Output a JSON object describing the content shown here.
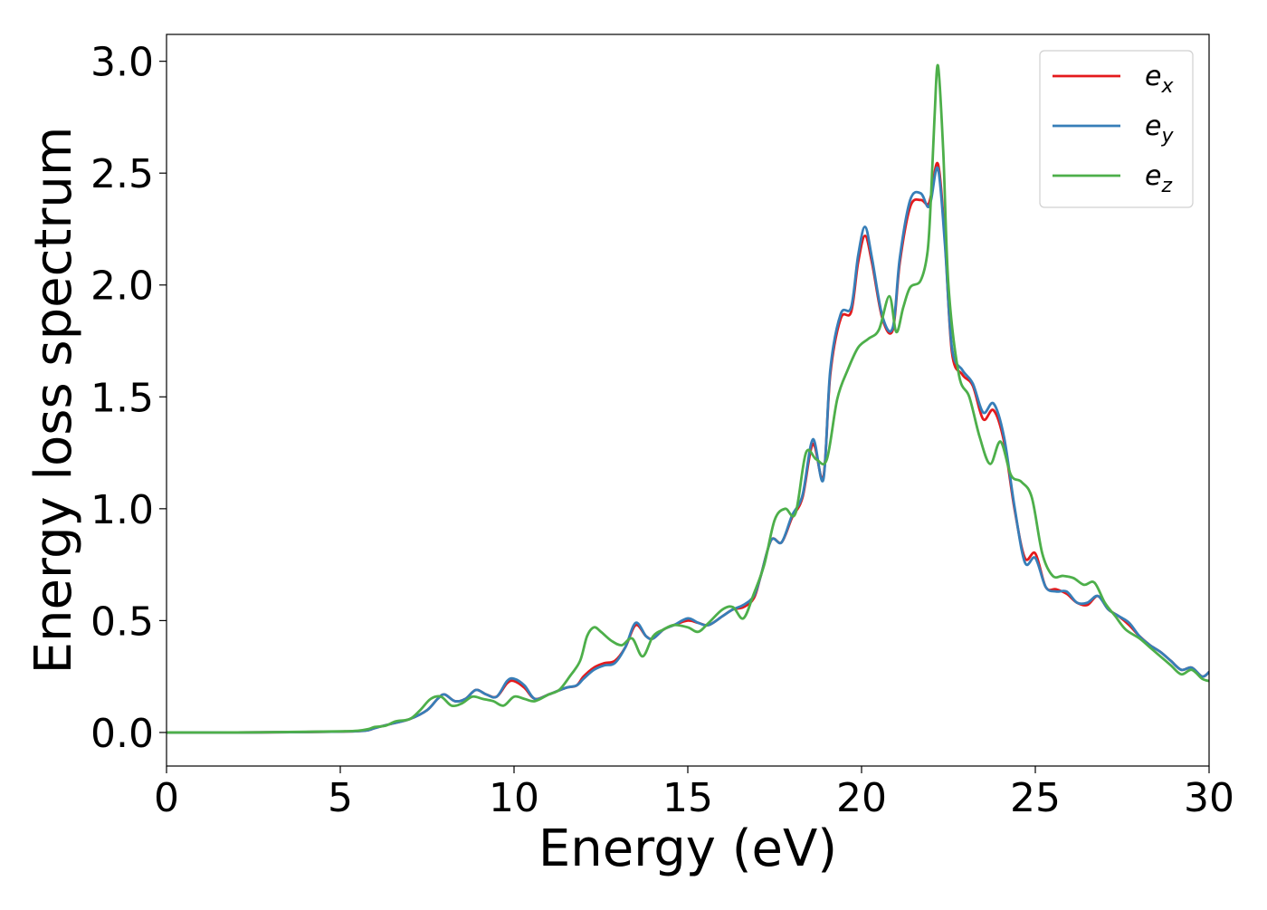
{
  "chart_data": {
    "type": "line",
    "title": "",
    "xlabel": "Energy (eV)",
    "ylabel": "Energy loss spectrum",
    "xlim": [
      0,
      30
    ],
    "ylim": [
      -0.15,
      3.12
    ],
    "xticks": [
      0,
      5,
      10,
      15,
      20,
      25,
      30
    ],
    "xtick_labels": [
      "0",
      "5",
      "10",
      "15",
      "20",
      "25",
      "30"
    ],
    "yticks": [
      0.0,
      0.5,
      1.0,
      1.5,
      2.0,
      2.5,
      3.0
    ],
    "ytick_labels": [
      "0.0",
      "0.5",
      "1.0",
      "1.5",
      "2.0",
      "2.5",
      "3.0"
    ],
    "grid": false,
    "legend_position": "top-right",
    "series": [
      {
        "name": "e_x",
        "legend_base": "e",
        "legend_sub": "x",
        "color": "#e41a1c",
        "x": [
          0,
          2,
          4,
          5,
          5.5,
          5.8,
          6.0,
          6.5,
          7.0,
          7.5,
          7.8,
          8.0,
          8.3,
          8.6,
          8.9,
          9.2,
          9.5,
          9.8,
          10.0,
          10.3,
          10.6,
          11.0,
          11.5,
          11.8,
          12.0,
          12.3,
          12.6,
          12.9,
          13.2,
          13.5,
          13.8,
          14.0,
          14.3,
          14.6,
          15.0,
          15.3,
          15.6,
          16.0,
          16.3,
          16.6,
          16.9,
          17.1,
          17.4,
          17.7,
          18.0,
          18.3,
          18.6,
          18.9,
          19.1,
          19.4,
          19.7,
          19.9,
          20.1,
          20.3,
          20.6,
          20.9,
          21.1,
          21.4,
          21.7,
          21.9,
          22.0,
          22.2,
          22.4,
          22.6,
          22.9,
          23.2,
          23.5,
          23.8,
          24.1,
          24.4,
          24.7,
          25.0,
          25.3,
          25.6,
          25.9,
          26.2,
          26.5,
          26.8,
          27.1,
          27.4,
          27.7,
          28.0,
          28.3,
          28.6,
          28.9,
          29.2,
          29.5,
          29.8,
          30.0
        ],
        "y": [
          0,
          0,
          0.002,
          0.004,
          0.006,
          0.01,
          0.02,
          0.04,
          0.06,
          0.1,
          0.15,
          0.17,
          0.14,
          0.15,
          0.19,
          0.17,
          0.16,
          0.22,
          0.23,
          0.2,
          0.15,
          0.17,
          0.2,
          0.21,
          0.25,
          0.29,
          0.31,
          0.32,
          0.38,
          0.48,
          0.43,
          0.42,
          0.46,
          0.48,
          0.5,
          0.49,
          0.48,
          0.52,
          0.55,
          0.56,
          0.6,
          0.7,
          0.86,
          0.85,
          0.96,
          1.05,
          1.29,
          1.14,
          1.6,
          1.85,
          1.88,
          2.1,
          2.22,
          2.1,
          1.85,
          1.8,
          2.1,
          2.35,
          2.38,
          2.36,
          2.4,
          2.54,
          2.2,
          1.7,
          1.6,
          1.55,
          1.4,
          1.44,
          1.3,
          1.0,
          0.78,
          0.8,
          0.65,
          0.64,
          0.62,
          0.58,
          0.57,
          0.61,
          0.55,
          0.52,
          0.48,
          0.43,
          0.39,
          0.36,
          0.32,
          0.28,
          0.29,
          0.25,
          0.27
        ]
      },
      {
        "name": "e_y",
        "legend_base": "e",
        "legend_sub": "y",
        "color": "#377eb8",
        "x": [
          0,
          2,
          4,
          5,
          5.5,
          5.8,
          6.0,
          6.5,
          7.0,
          7.5,
          7.8,
          8.0,
          8.3,
          8.6,
          8.9,
          9.2,
          9.5,
          9.8,
          10.0,
          10.3,
          10.6,
          11.0,
          11.5,
          11.8,
          12.0,
          12.3,
          12.6,
          12.9,
          13.2,
          13.5,
          13.8,
          14.0,
          14.3,
          14.6,
          15.0,
          15.3,
          15.6,
          16.0,
          16.3,
          16.6,
          16.9,
          17.1,
          17.4,
          17.7,
          18.0,
          18.3,
          18.6,
          18.9,
          19.1,
          19.4,
          19.7,
          19.9,
          20.1,
          20.3,
          20.6,
          20.9,
          21.1,
          21.4,
          21.7,
          21.9,
          22.0,
          22.2,
          22.4,
          22.6,
          22.9,
          23.2,
          23.5,
          23.8,
          24.1,
          24.4,
          24.7,
          25.0,
          25.3,
          25.6,
          25.9,
          26.2,
          26.5,
          26.8,
          27.1,
          27.4,
          27.7,
          28.0,
          28.3,
          28.6,
          28.9,
          29.2,
          29.5,
          29.8,
          30.0
        ],
        "y": [
          0,
          0,
          0.002,
          0.004,
          0.006,
          0.01,
          0.02,
          0.04,
          0.06,
          0.1,
          0.15,
          0.17,
          0.14,
          0.15,
          0.19,
          0.17,
          0.16,
          0.23,
          0.24,
          0.21,
          0.15,
          0.17,
          0.2,
          0.21,
          0.24,
          0.28,
          0.3,
          0.31,
          0.38,
          0.49,
          0.43,
          0.42,
          0.46,
          0.48,
          0.51,
          0.49,
          0.48,
          0.52,
          0.55,
          0.57,
          0.61,
          0.7,
          0.86,
          0.85,
          0.97,
          1.06,
          1.31,
          1.13,
          1.62,
          1.87,
          1.9,
          2.13,
          2.26,
          2.12,
          1.86,
          1.81,
          2.12,
          2.38,
          2.41,
          2.35,
          2.38,
          2.52,
          2.18,
          1.72,
          1.62,
          1.56,
          1.43,
          1.47,
          1.32,
          1.01,
          0.76,
          0.78,
          0.65,
          0.63,
          0.63,
          0.58,
          0.58,
          0.61,
          0.55,
          0.52,
          0.49,
          0.43,
          0.39,
          0.36,
          0.32,
          0.28,
          0.29,
          0.25,
          0.27
        ]
      },
      {
        "name": "e_z",
        "legend_base": "e",
        "legend_sub": "z",
        "color": "#4daf4a",
        "x": [
          0,
          2,
          4,
          5,
          5.5,
          5.8,
          6.0,
          6.3,
          6.6,
          7.0,
          7.3,
          7.6,
          7.9,
          8.2,
          8.5,
          8.8,
          9.1,
          9.4,
          9.7,
          10.0,
          10.3,
          10.6,
          11.0,
          11.3,
          11.6,
          11.9,
          12.1,
          12.3,
          12.5,
          12.8,
          13.1,
          13.4,
          13.7,
          14.0,
          14.3,
          14.6,
          15.0,
          15.3,
          15.6,
          16.0,
          16.3,
          16.6,
          16.9,
          17.2,
          17.5,
          17.8,
          18.1,
          18.4,
          18.7,
          19.0,
          19.3,
          19.6,
          19.9,
          20.2,
          20.5,
          20.8,
          21.0,
          21.2,
          21.4,
          21.7,
          21.9,
          22.0,
          22.1,
          22.2,
          22.35,
          22.5,
          22.8,
          23.1,
          23.4,
          23.7,
          24.0,
          24.3,
          24.6,
          24.9,
          25.2,
          25.5,
          25.8,
          26.1,
          26.4,
          26.7,
          27.0,
          27.3,
          27.6,
          28.0,
          28.3,
          28.6,
          28.9,
          29.2,
          29.5,
          29.8,
          30.0
        ],
        "y": [
          0,
          0,
          0.003,
          0.005,
          0.008,
          0.015,
          0.025,
          0.03,
          0.05,
          0.06,
          0.1,
          0.15,
          0.16,
          0.12,
          0.13,
          0.16,
          0.15,
          0.14,
          0.12,
          0.16,
          0.15,
          0.14,
          0.17,
          0.19,
          0.25,
          0.32,
          0.43,
          0.47,
          0.45,
          0.41,
          0.39,
          0.42,
          0.34,
          0.43,
          0.46,
          0.48,
          0.47,
          0.45,
          0.49,
          0.55,
          0.56,
          0.51,
          0.62,
          0.75,
          0.95,
          1.0,
          0.98,
          1.25,
          1.22,
          1.22,
          1.49,
          1.62,
          1.72,
          1.76,
          1.8,
          1.95,
          1.79,
          1.9,
          1.99,
          2.02,
          2.15,
          2.4,
          2.75,
          2.98,
          2.6,
          2.0,
          1.6,
          1.5,
          1.32,
          1.2,
          1.3,
          1.15,
          1.12,
          1.05,
          0.8,
          0.7,
          0.7,
          0.69,
          0.66,
          0.67,
          0.58,
          0.52,
          0.46,
          0.42,
          0.38,
          0.34,
          0.3,
          0.26,
          0.28,
          0.24,
          0.23
        ]
      }
    ]
  }
}
